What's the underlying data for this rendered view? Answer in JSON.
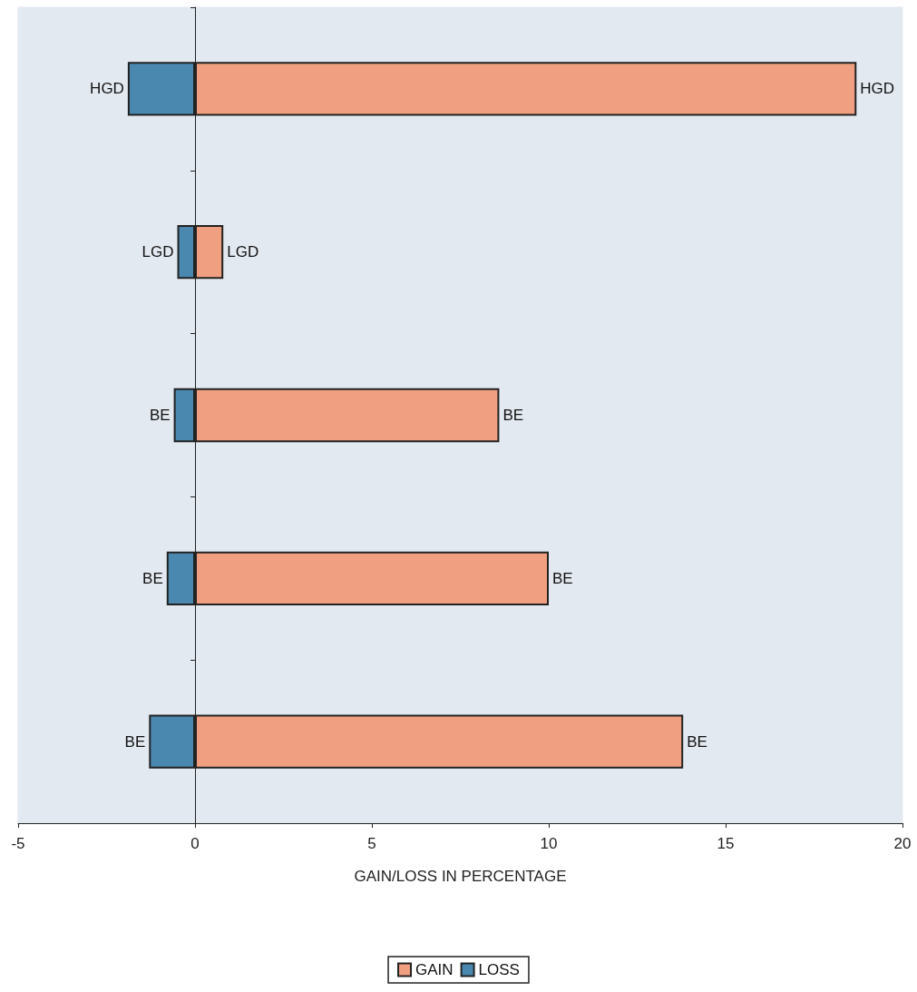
{
  "chart_data": {
    "type": "bar",
    "orientation": "horizontal",
    "stacked": true,
    "xlabel": "GAIN/LOSS IN PERCENTAGE",
    "categories": [
      null,
      null,
      null,
      null,
      null
    ],
    "series": [
      {
        "name": "GAIN",
        "color": "#f0a080",
        "values": [
          18.7,
          0.8,
          8.6,
          10.0,
          13.8
        ],
        "value_labels": [
          "HGD",
          "LGD",
          "BE",
          "BE",
          "BE"
        ]
      },
      {
        "name": "LOSS",
        "color": "#4a88b0",
        "values": [
          -1.9,
          -0.5,
          -0.6,
          -0.8,
          -1.3
        ],
        "value_labels": [
          "HGD",
          "LGD",
          "BE",
          "BE",
          "BE"
        ]
      }
    ],
    "xlim": [
      -5,
      20
    ],
    "xticks": [
      -5,
      0,
      5,
      10,
      15,
      20
    ],
    "legend": "bottom"
  }
}
